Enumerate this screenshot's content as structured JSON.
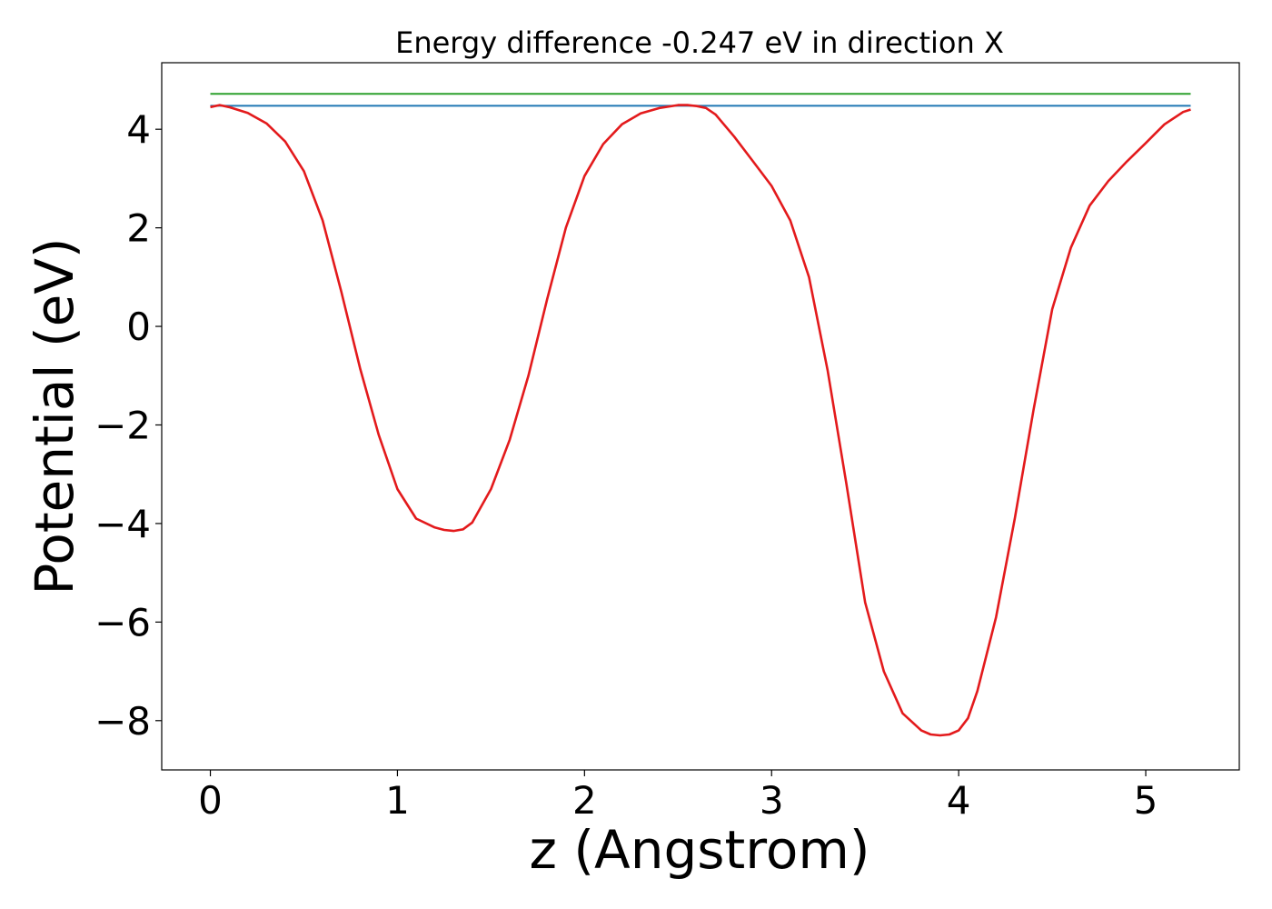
{
  "chart_data": {
    "type": "line",
    "title": "Energy difference -0.247 eV in direction X",
    "xlabel": "z (Angstrom)",
    "ylabel": "Potential (eV)",
    "xlim": [
      -0.26,
      5.5
    ],
    "ylim": [
      -9.0,
      5.35
    ],
    "xticks": [
      0,
      1,
      2,
      3,
      4,
      5
    ],
    "xtick_labels": [
      "0",
      "1",
      "2",
      "3",
      "4",
      "5"
    ],
    "yticks": [
      4,
      2,
      0,
      -2,
      -4,
      -6,
      -8
    ],
    "ytick_labels": [
      "4",
      "2",
      "0",
      "−2",
      "−4",
      "−6",
      "−8"
    ],
    "grid": false,
    "series": [
      {
        "color": "#2ca02c",
        "stroke_width": 2,
        "x": [
          0,
          5.24
        ],
        "y": [
          4.72,
          4.72
        ]
      },
      {
        "color": "#1f77b4",
        "stroke_width": 2,
        "x": [
          0,
          5.24
        ],
        "y": [
          4.475,
          4.475
        ]
      },
      {
        "color": "#e31a1c",
        "stroke_width": 2.6,
        "x": [
          0.0,
          0.05,
          0.1,
          0.2,
          0.3,
          0.4,
          0.5,
          0.6,
          0.7,
          0.8,
          0.9,
          1.0,
          1.1,
          1.2,
          1.25,
          1.3,
          1.35,
          1.4,
          1.5,
          1.6,
          1.7,
          1.8,
          1.9,
          2.0,
          2.1,
          2.2,
          2.3,
          2.4,
          2.5,
          2.55,
          2.6,
          2.65,
          2.7,
          2.8,
          2.9,
          3.0,
          3.1,
          3.2,
          3.3,
          3.4,
          3.5,
          3.6,
          3.7,
          3.8,
          3.85,
          3.9,
          3.95,
          4.0,
          4.05,
          4.1,
          4.2,
          4.3,
          4.4,
          4.5,
          4.6,
          4.7,
          4.8,
          4.9,
          5.0,
          5.1,
          5.2,
          5.24
        ],
        "y": [
          4.45,
          4.49,
          4.45,
          4.33,
          4.12,
          3.75,
          3.15,
          2.15,
          0.7,
          -0.85,
          -2.2,
          -3.3,
          -3.9,
          -4.08,
          -4.13,
          -4.15,
          -4.12,
          -3.98,
          -3.3,
          -2.3,
          -1.0,
          0.55,
          2.0,
          3.05,
          3.7,
          4.1,
          4.32,
          4.43,
          4.49,
          4.49,
          4.47,
          4.43,
          4.3,
          3.85,
          3.35,
          2.85,
          2.15,
          1.0,
          -0.9,
          -3.2,
          -5.6,
          -7.0,
          -7.85,
          -8.2,
          -8.28,
          -8.3,
          -8.28,
          -8.2,
          -7.95,
          -7.4,
          -5.9,
          -3.9,
          -1.7,
          0.35,
          1.6,
          2.45,
          2.95,
          3.35,
          3.72,
          4.1,
          4.35,
          4.4
        ]
      }
    ]
  }
}
